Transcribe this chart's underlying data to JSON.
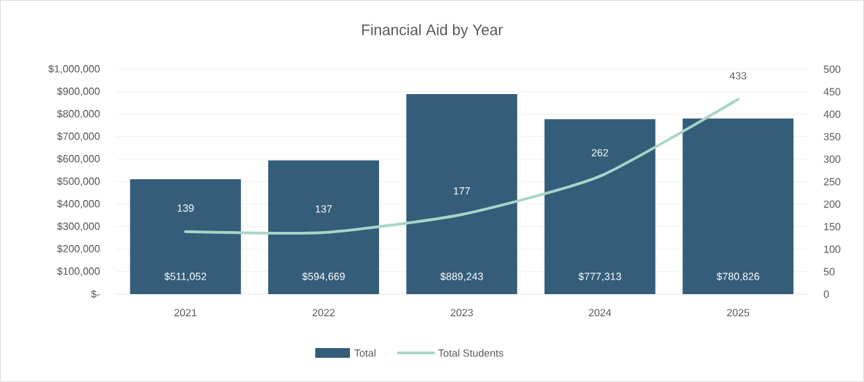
{
  "chart_data": {
    "type": "bar",
    "title": "Financial Aid by Year",
    "categories": [
      "2021",
      "2022",
      "2023",
      "2024",
      "2025"
    ],
    "series": [
      {
        "name": "Total",
        "color": "#335d79",
        "values": [
          511052,
          594669,
          889243,
          777313,
          780826
        ],
        "value_labels": [
          "$511,052",
          "$594,669",
          "$889,243",
          "$777,313",
          "$780,826"
        ]
      },
      {
        "name": "Total Students",
        "type": "line",
        "axis": "y2",
        "color": "#a9d5c9",
        "values": [
          139,
          137,
          177,
          262,
          433
        ],
        "value_labels": [
          "139",
          "137",
          "177",
          "262",
          "433"
        ]
      }
    ],
    "ylim": [
      0,
      1000000
    ],
    "yticks": [
      {
        "value": 0,
        "label": "$-"
      },
      {
        "value": 100000,
        "label": "$100,000"
      },
      {
        "value": 200000,
        "label": "$200,000"
      },
      {
        "value": 300000,
        "label": "$300,000"
      },
      {
        "value": 400000,
        "label": "$400,000"
      },
      {
        "value": 500000,
        "label": "$500,000"
      },
      {
        "value": 600000,
        "label": "$600,000"
      },
      {
        "value": 700000,
        "label": "$700,000"
      },
      {
        "value": 800000,
        "label": "$800,000"
      },
      {
        "value": 900000,
        "label": "$900,000"
      },
      {
        "value": 1000000,
        "label": "$1,000,000"
      }
    ],
    "y2lim": [
      0,
      500
    ],
    "y2ticks": [
      0,
      50,
      100,
      150,
      200,
      250,
      300,
      350,
      400,
      450,
      500
    ],
    "grid": "y",
    "legend": "bottom",
    "line_style": "solid"
  }
}
